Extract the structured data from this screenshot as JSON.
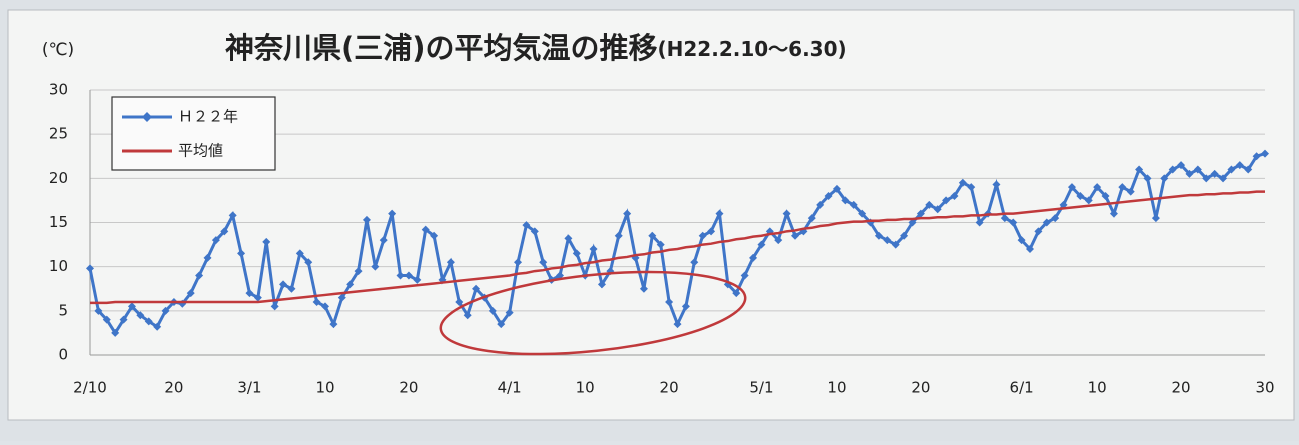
{
  "chart_data": {
    "type": "line",
    "title": "神奈川県(三浦)の平均気温の推移",
    "subtitle": "(H22.2.10～6.30)",
    "y_unit": "(℃)",
    "categories": [
      "2/10",
      null,
      null,
      null,
      null,
      null,
      null,
      null,
      null,
      null,
      "20",
      null,
      null,
      null,
      null,
      null,
      null,
      null,
      null,
      "3/1",
      null,
      null,
      null,
      null,
      null,
      null,
      null,
      null,
      "10",
      null,
      null,
      null,
      null,
      null,
      null,
      null,
      null,
      null,
      "20",
      null,
      null,
      null,
      null,
      null,
      null,
      null,
      null,
      null,
      null,
      null,
      "4/1",
      null,
      null,
      null,
      null,
      null,
      null,
      null,
      null,
      "10",
      null,
      null,
      null,
      null,
      null,
      null,
      null,
      null,
      null,
      "20",
      null,
      null,
      null,
      null,
      null,
      null,
      null,
      null,
      null,
      null,
      "5/1",
      null,
      null,
      null,
      null,
      null,
      null,
      null,
      null,
      "10",
      null,
      null,
      null,
      null,
      null,
      null,
      null,
      null,
      null,
      "20",
      null,
      null,
      null,
      null,
      null,
      null,
      null,
      null,
      null,
      null,
      null,
      "6/1",
      null,
      null,
      null,
      null,
      null,
      null,
      null,
      null,
      "10",
      null,
      null,
      null,
      null,
      null,
      null,
      null,
      null,
      null,
      "20",
      null,
      null,
      null,
      null,
      null,
      null,
      null,
      null,
      null,
      "30"
    ],
    "series": [
      {
        "name": "Ｈ２２年",
        "color": "#3f75c8",
        "marker": "diamond",
        "values": [
          9.8,
          5,
          4,
          2.5,
          4,
          5.5,
          4.5,
          3.8,
          3.2,
          5,
          6,
          5.8,
          7,
          9,
          11,
          13,
          14,
          15.8,
          11.5,
          7,
          6.5,
          12.8,
          5.5,
          8,
          7.5,
          11.5,
          10.5,
          6,
          5.5,
          3.5,
          6.5,
          8,
          9.5,
          15.3,
          10,
          13,
          16,
          9,
          9,
          8.5,
          14.2,
          13.5,
          8.5,
          10.5,
          6,
          4.5,
          7.5,
          6.5,
          5,
          3.5,
          4.8,
          10.5,
          14.7,
          14,
          10.5,
          8.5,
          9,
          13.2,
          11.5,
          9,
          12,
          8,
          9.5,
          13.5,
          16,
          11,
          7.5,
          13.5,
          12.5,
          6,
          3.5,
          5.5,
          10.5,
          13.5,
          14,
          16,
          8,
          7,
          9,
          11,
          12.5,
          14,
          13,
          16,
          13.5,
          14,
          15.5,
          17,
          18,
          18.8,
          17.5,
          17,
          16,
          15,
          13.5,
          13,
          12.5,
          13.5,
          15,
          16,
          17,
          16.5,
          17.5,
          18,
          19.5,
          19,
          15,
          16,
          19.3,
          15.5,
          15,
          13,
          12,
          14,
          15,
          15.5,
          17,
          19,
          18,
          17.5,
          19,
          18,
          16,
          19,
          18.5,
          21,
          20,
          15.5,
          20,
          21,
          21.5,
          20.5,
          21,
          20,
          20.5,
          20,
          21,
          21.5,
          21,
          22.5,
          22.8
        ]
      },
      {
        "name": "平均値",
        "color": "#c0393b",
        "marker": "dash",
        "values": [
          5.9,
          5.9,
          5.9,
          6.0,
          6.0,
          6.0,
          6.0,
          6.0,
          6.0,
          6.0,
          6.0,
          6.0,
          6.0,
          6.0,
          6.0,
          6.0,
          6.0,
          6.0,
          6.0,
          6.0,
          6.0,
          6.1,
          6.2,
          6.3,
          6.4,
          6.5,
          6.6,
          6.7,
          6.8,
          6.9,
          7.0,
          7.1,
          7.2,
          7.3,
          7.4,
          7.5,
          7.6,
          7.7,
          7.8,
          7.9,
          8.0,
          8.1,
          8.2,
          8.3,
          8.4,
          8.5,
          8.6,
          8.7,
          8.8,
          8.9,
          9.0,
          9.2,
          9.3,
          9.5,
          9.6,
          9.8,
          9.9,
          10.1,
          10.2,
          10.4,
          10.5,
          10.7,
          10.8,
          11.0,
          11.1,
          11.3,
          11.4,
          11.6,
          11.7,
          11.9,
          12.0,
          12.2,
          12.3,
          12.5,
          12.6,
          12.8,
          12.9,
          13.1,
          13.2,
          13.4,
          13.5,
          13.7,
          13.8,
          14.0,
          14.1,
          14.3,
          14.4,
          14.6,
          14.7,
          14.9,
          15.0,
          15.1,
          15.1,
          15.2,
          15.2,
          15.3,
          15.3,
          15.4,
          15.4,
          15.5,
          15.5,
          15.6,
          15.6,
          15.7,
          15.7,
          15.8,
          15.8,
          15.9,
          15.9,
          16.0,
          16.0,
          16.1,
          16.2,
          16.3,
          16.4,
          16.5,
          16.6,
          16.7,
          16.8,
          16.9,
          17.0,
          17.1,
          17.2,
          17.3,
          17.4,
          17.5,
          17.6,
          17.7,
          17.8,
          17.9,
          18.0,
          18.1,
          18.1,
          18.2,
          18.2,
          18.3,
          18.3,
          18.4,
          18.4,
          18.5,
          18.5
        ]
      }
    ],
    "ylim": [
      0,
      30
    ],
    "yticks": [
      0,
      5,
      10,
      15,
      20,
      25,
      30
    ],
    "grid": true,
    "legend": "upper left"
  }
}
